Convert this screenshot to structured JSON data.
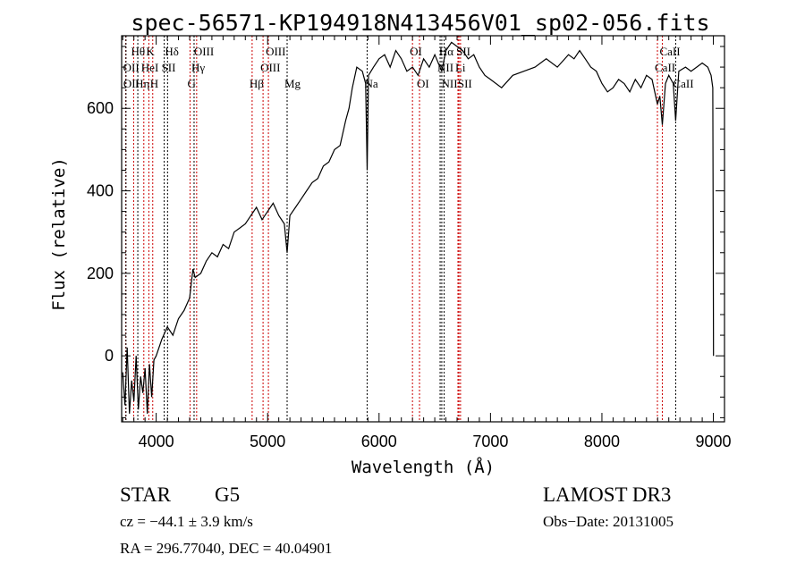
{
  "chart_data": {
    "type": "line",
    "title": "spec-56571-KP194918N413456V01_sp02-056.fits",
    "xlabel": "Wavelength (Å)",
    "ylabel": "Flux (relative)",
    "xlim": [
      3690,
      9100
    ],
    "ylim": [
      -160,
      776
    ],
    "xticks": [
      4000,
      5000,
      6000,
      7000,
      8000,
      9000
    ],
    "yticks": [
      0,
      200,
      400,
      600
    ],
    "grid": false,
    "series": [
      {
        "name": "spectrum",
        "x": [
          3700,
          3720,
          3740,
          3760,
          3780,
          3800,
          3820,
          3840,
          3860,
          3880,
          3900,
          3920,
          3940,
          3960,
          3980,
          4000,
          4050,
          4100,
          4150,
          4200,
          4250,
          4300,
          4330,
          4350,
          4400,
          4450,
          4500,
          4550,
          4600,
          4650,
          4700,
          4750,
          4800,
          4850,
          4900,
          4950,
          5000,
          5050,
          5100,
          5150,
          5175,
          5200,
          5250,
          5300,
          5350,
          5400,
          5450,
          5500,
          5550,
          5600,
          5650,
          5700,
          5730,
          5760,
          5800,
          5850,
          5880,
          5893,
          5905,
          5950,
          6000,
          6050,
          6100,
          6150,
          6200,
          6250,
          6300,
          6350,
          6400,
          6450,
          6500,
          6563,
          6600,
          6650,
          6700,
          6750,
          6800,
          6850,
          6900,
          6950,
          7000,
          7100,
          7200,
          7300,
          7400,
          7500,
          7600,
          7700,
          7750,
          7800,
          7850,
          7900,
          7950,
          8000,
          8050,
          8100,
          8150,
          8200,
          8250,
          8300,
          8350,
          8400,
          8450,
          8498,
          8520,
          8542,
          8570,
          8600,
          8640,
          8662,
          8690,
          8750,
          8800,
          8850,
          8900,
          8950,
          8980,
          8995,
          9000,
          9001
        ],
        "y": [
          -40,
          -120,
          20,
          -140,
          -60,
          -110,
          0,
          -130,
          -50,
          -90,
          -30,
          -140,
          -20,
          -100,
          -10,
          0,
          40,
          70,
          50,
          90,
          110,
          140,
          210,
          190,
          200,
          230,
          250,
          240,
          270,
          260,
          300,
          310,
          320,
          340,
          360,
          330,
          350,
          370,
          340,
          320,
          250,
          340,
          360,
          380,
          400,
          420,
          430,
          460,
          470,
          500,
          510,
          570,
          600,
          650,
          700,
          690,
          660,
          450,
          680,
          700,
          720,
          730,
          700,
          740,
          720,
          690,
          700,
          680,
          720,
          700,
          730,
          690,
          740,
          760,
          750,
          740,
          720,
          730,
          700,
          680,
          670,
          650,
          680,
          690,
          700,
          720,
          700,
          730,
          720,
          740,
          720,
          700,
          690,
          660,
          640,
          650,
          670,
          660,
          640,
          670,
          650,
          680,
          670,
          610,
          630,
          560,
          660,
          680,
          660,
          570,
          690,
          700,
          690,
          700,
          710,
          700,
          680,
          650,
          200,
          0
        ]
      }
    ],
    "line_labels": [
      {
        "label": "Hθ",
        "wavelength": 3798,
        "color": "#cc0000"
      },
      {
        "label": "K",
        "wavelength": 3934,
        "color": "#cc0000"
      },
      {
        "label": "Hδ",
        "wavelength": 4102,
        "color": "#000000"
      },
      {
        "label": "OIII",
        "wavelength": 4363,
        "color": "#cc0000"
      },
      {
        "label": "OIII",
        "wavelength": 5007,
        "color": "#cc0000"
      },
      {
        "label": "OI",
        "wavelength": 6300,
        "color": "#cc0000"
      },
      {
        "label": "Hα",
        "wavelength": 6563,
        "color": "#000000"
      },
      {
        "label": "SII",
        "wavelength": 6717,
        "color": "#cc0000"
      },
      {
        "label": "CaII",
        "wavelength": 8542,
        "color": "#cc0000"
      },
      {
        "label": "OII",
        "wavelength": 3727,
        "color": "#cc0000"
      },
      {
        "label": "HeI",
        "wavelength": 3889,
        "color": "#cc0000"
      },
      {
        "label": "SII",
        "wavelength": 4072,
        "color": "#000000"
      },
      {
        "label": "Hγ",
        "wavelength": 4340,
        "color": "#000000"
      },
      {
        "label": "OIII",
        "wavelength": 4959,
        "color": "#cc0000"
      },
      {
        "label": "NII",
        "wavelength": 6548,
        "color": "#000000"
      },
      {
        "label": "Li",
        "wavelength": 6708,
        "color": "#cc0000"
      },
      {
        "label": "CaII",
        "wavelength": 8498,
        "color": "#cc0000"
      },
      {
        "label": "OII",
        "wavelength": 3729,
        "color": "#000000"
      },
      {
        "label": "Hη",
        "wavelength": 3835,
        "color": "#000000"
      },
      {
        "label": "H",
        "wavelength": 3969,
        "color": "#cc0000"
      },
      {
        "label": "G",
        "wavelength": 4304,
        "color": "#cc0000"
      },
      {
        "label": "Hβ",
        "wavelength": 4861,
        "color": "#cc0000"
      },
      {
        "label": "Mg",
        "wavelength": 5175,
        "color": "#000000"
      },
      {
        "label": "Na",
        "wavelength": 5893,
        "color": "#000000"
      },
      {
        "label": "OI",
        "wavelength": 6363,
        "color": "#cc0000"
      },
      {
        "label": "NII",
        "wavelength": 6584,
        "color": "#000000"
      },
      {
        "label": "SII",
        "wavelength": 6731,
        "color": "#cc0000"
      },
      {
        "label": "CaII",
        "wavelength": 8662,
        "color": "#000000"
      }
    ]
  },
  "info": {
    "object_class": "STAR",
    "subclass": "G5",
    "survey": "LAMOST DR3",
    "redshift": "cz = −44.1 ± 3.9 km/s",
    "obs_date": "Obs−Date: 20131005",
    "coords": "RA = 296.77040, DEC =  40.04901"
  }
}
